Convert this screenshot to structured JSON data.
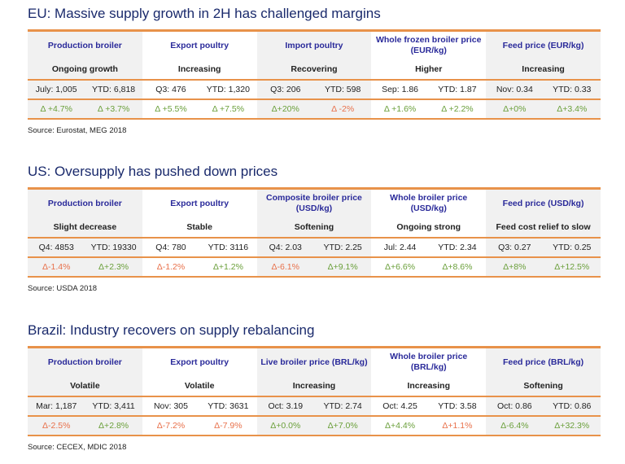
{
  "sections": [
    {
      "title": "EU: Massive supply growth in 2H has challenged margins",
      "source": "Source: Eurostat, MEG 2018",
      "columns": [
        {
          "header": "Production broiler",
          "trend": "Ongoing growth",
          "values": [
            "July: 1,005",
            "YTD: 6,818"
          ],
          "deltas": [
            {
              "text": "Δ +4.7%",
              "color": "#6a9f3a"
            },
            {
              "text": "Δ +3.7%",
              "color": "#6a9f3a"
            }
          ]
        },
        {
          "header": "Export poultry",
          "trend": "Increasing",
          "values": [
            "Q3: 476",
            "YTD: 1,320"
          ],
          "deltas": [
            {
              "text": "Δ +5.5%",
              "color": "#6a9f3a"
            },
            {
              "text": "Δ +7.5%",
              "color": "#6a9f3a"
            }
          ]
        },
        {
          "header": "Import poultry",
          "trend": "Recovering",
          "values": [
            "Q3: 206",
            "YTD: 598"
          ],
          "deltas": [
            {
              "text": "Δ+20%",
              "color": "#6a9f3a"
            },
            {
              "text": "Δ -2%",
              "color": "#e8704a"
            }
          ]
        },
        {
          "header": "Whole frozen broiler price (EUR/kg)",
          "trend": "Higher",
          "values": [
            "Sep: 1.86",
            "YTD: 1.87"
          ],
          "deltas": [
            {
              "text": "Δ +1.6%",
              "color": "#6a9f3a"
            },
            {
              "text": "Δ +2.2%",
              "color": "#6a9f3a"
            }
          ]
        },
        {
          "header": "Feed price (EUR/kg)",
          "trend": "Increasing",
          "values": [
            "Nov: 0.34",
            "YTD: 0.33"
          ],
          "deltas": [
            {
              "text": "Δ+0%",
              "color": "#6a9f3a"
            },
            {
              "text": "Δ+3.4%",
              "color": "#6a9f3a"
            }
          ]
        }
      ]
    },
    {
      "title": "US: Oversupply has pushed down prices",
      "source": "Source: USDA 2018",
      "columns": [
        {
          "header": "Production broiler",
          "trend": "Slight decrease",
          "values": [
            "Q4: 4853",
            "YTD: 19330"
          ],
          "deltas": [
            {
              "text": "Δ-1.4%",
              "color": "#e8704a"
            },
            {
              "text": "Δ+2.3%",
              "color": "#6a9f3a"
            }
          ]
        },
        {
          "header": "Export poultry",
          "trend": "Stable",
          "values": [
            "Q4: 780",
            "YTD: 3116"
          ],
          "deltas": [
            {
              "text": "Δ-1.2%",
              "color": "#e8704a"
            },
            {
              "text": "Δ+1.2%",
              "color": "#6a9f3a"
            }
          ]
        },
        {
          "header": "Composite broiler price (USD/kg)",
          "trend": "Softening",
          "values": [
            "Q4: 2.03",
            "YTD: 2.25"
          ],
          "deltas": [
            {
              "text": "Δ-6.1%",
              "color": "#e8704a"
            },
            {
              "text": "Δ+9.1%",
              "color": "#6a9f3a"
            }
          ]
        },
        {
          "header": "Whole broiler price (USD/kg)",
          "trend": "Ongoing strong",
          "values": [
            "Jul: 2.44",
            "YTD: 2.34"
          ],
          "deltas": [
            {
              "text": "Δ+6.6%",
              "color": "#6a9f3a"
            },
            {
              "text": "Δ+8.6%",
              "color": "#6a9f3a"
            }
          ]
        },
        {
          "header": "Feed price (USD/kg)",
          "trend": "Feed cost relief to slow",
          "values": [
            "Q3: 0.27",
            "YTD: 0.25"
          ],
          "deltas": [
            {
              "text": "Δ+8%",
              "color": "#6a9f3a"
            },
            {
              "text": "Δ+12.5%",
              "color": "#6a9f3a"
            }
          ]
        }
      ]
    },
    {
      "title": "Brazil: Industry recovers on supply rebalancing",
      "source": "Source: CECEX, MDIC 2018",
      "columns": [
        {
          "header": "Production broiler",
          "trend": "Volatile",
          "values": [
            "Mar: 1,187",
            "YTD: 3,411"
          ],
          "deltas": [
            {
              "text": "Δ-2.5%",
              "color": "#e8704a"
            },
            {
              "text": "Δ+2.8%",
              "color": "#6a9f3a"
            }
          ]
        },
        {
          "header": "Export poultry",
          "trend": "Volatile",
          "values": [
            "Nov: 305",
            "YTD: 3631"
          ],
          "deltas": [
            {
              "text": "Δ-7.2%",
              "color": "#e8704a"
            },
            {
              "text": "Δ-7.9%",
              "color": "#e8704a"
            }
          ]
        },
        {
          "header": "Live broiler price (BRL/kg)",
          "trend": "Increasing",
          "values": [
            "Oct: 3.19",
            "YTD: 2.74"
          ],
          "deltas": [
            {
              "text": "Δ+0.0%",
              "color": "#6a9f3a"
            },
            {
              "text": "Δ+7.0%",
              "color": "#6a9f3a"
            }
          ]
        },
        {
          "header": "Whole broiler price (BRL/kg)",
          "trend": "Increasing",
          "values": [
            "Oct: 4.25",
            "YTD: 3.58"
          ],
          "deltas": [
            {
              "text": "Δ+4.4%",
              "color": "#6a9f3a"
            },
            {
              "text": "Δ+1.1%",
              "color": "#e8704a"
            }
          ]
        },
        {
          "header": "Feed price (BRL/kg)",
          "trend": "Softening",
          "values": [
            "Oct: 0.86",
            "YTD: 0.86"
          ],
          "deltas": [
            {
              "text": "Δ-6.4%",
              "color": "#6a9f3a"
            },
            {
              "text": "Δ+32.3%",
              "color": "#6a9f3a"
            }
          ]
        }
      ]
    }
  ]
}
